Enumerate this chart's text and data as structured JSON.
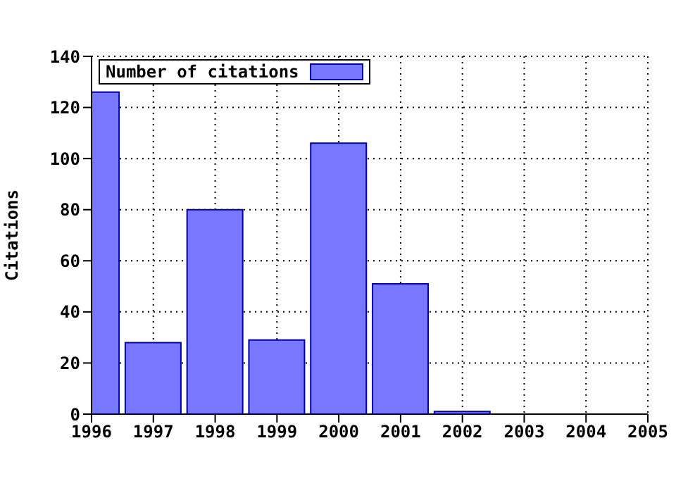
{
  "chart_data": {
    "type": "bar",
    "ylabel": "Citations",
    "x": [
      1996,
      1997,
      1998,
      1999,
      2000,
      2001,
      2002
    ],
    "series": [
      {
        "name": "Number of citations",
        "color": "#7777ff",
        "values": [
          126,
          28,
          80,
          29,
          106,
          51,
          1
        ]
      }
    ],
    "xlim": [
      1996,
      2005
    ],
    "xticks": [
      1996,
      1997,
      1998,
      1999,
      2000,
      2001,
      2002,
      2003,
      2004,
      2005
    ],
    "ylim": [
      0,
      140
    ],
    "yticks": [
      0,
      20,
      40,
      60,
      80,
      100,
      120,
      140
    ],
    "grid": true,
    "legend": "top left"
  }
}
